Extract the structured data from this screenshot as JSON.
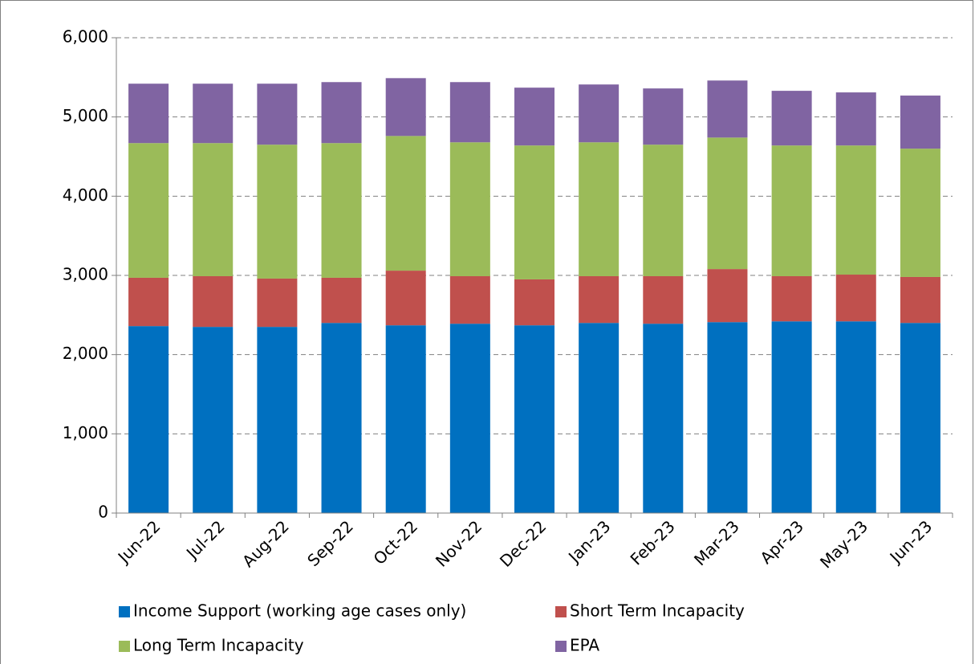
{
  "chart_data": {
    "type": "stacked_bar",
    "categories": [
      "Jun-22",
      "Jul-22",
      "Aug-22",
      "Sep-22",
      "Oct-22",
      "Nov-22",
      "Dec-22",
      "Jan-23",
      "Feb-23",
      "Mar-23",
      "Apr-23",
      "May-23",
      "Jun-23"
    ],
    "series": [
      {
        "name": "Income Support (working age cases only)",
        "color": "#0070c0",
        "values": [
          2360,
          2350,
          2350,
          2400,
          2370,
          2390,
          2370,
          2400,
          2390,
          2410,
          2420,
          2420,
          2400
        ]
      },
      {
        "name": "Short Term Incapacity",
        "color": "#c0504d",
        "values": [
          610,
          640,
          610,
          570,
          690,
          600,
          580,
          590,
          600,
          670,
          570,
          590,
          580
        ]
      },
      {
        "name": "Long Term Incapacity",
        "color": "#9bbb59",
        "values": [
          1700,
          1680,
          1690,
          1700,
          1700,
          1690,
          1690,
          1690,
          1660,
          1660,
          1650,
          1630,
          1620
        ]
      },
      {
        "name": "EPA",
        "color": "#8064a2",
        "values": [
          750,
          750,
          770,
          770,
          730,
          760,
          730,
          730,
          710,
          720,
          690,
          670,
          670
        ]
      }
    ],
    "ylim": [
      0,
      6000
    ],
    "yticks": [
      0,
      {
        "value": 1000,
        "label": "1,000"
      },
      {
        "value": 2000,
        "label": "2,000"
      },
      {
        "value": 3000,
        "label": "3,000"
      },
      {
        "value": 4000,
        "label": "4,000"
      },
      {
        "value": 5000,
        "label": "5,000"
      },
      {
        "value": 6000,
        "label": "6,000"
      }
    ],
    "grid": true
  }
}
